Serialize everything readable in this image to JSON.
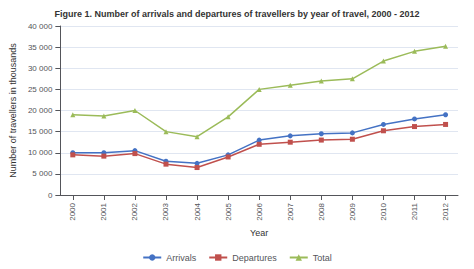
{
  "chart_data": {
    "type": "line",
    "title": "Figure 1. Number of arrivals and departures of travellers by year of travel, 2000 - 2012",
    "xlabel": "Year",
    "ylabel": "Number of travellers in thousands",
    "x": [
      2000,
      2001,
      2002,
      2003,
      2004,
      2005,
      2006,
      2007,
      2008,
      2009,
      2010,
      2011,
      2012
    ],
    "series": [
      {
        "name": "Arrivals",
        "color": "#4472C4",
        "marker": "circle",
        "values": [
          10000,
          10000,
          10500,
          8000,
          7500,
          9500,
          13000,
          14000,
          14500,
          14700,
          16700,
          18000,
          19000
        ]
      },
      {
        "name": "Departures",
        "color": "#C0504D",
        "marker": "square",
        "values": [
          9500,
          9200,
          9800,
          7300,
          6500,
          9000,
          12000,
          12500,
          13000,
          13200,
          15200,
          16200,
          16700
        ]
      },
      {
        "name": "Total",
        "color": "#9BBB59",
        "marker": "triangle",
        "values": [
          19000,
          18700,
          20000,
          15000,
          13800,
          18500,
          25000,
          26000,
          27000,
          27500,
          31700,
          34000,
          35200
        ]
      }
    ],
    "xlim": [
      1999.6,
      2012.4
    ],
    "xticks": [
      2000,
      2001,
      2002,
      2003,
      2004,
      2005,
      2006,
      2007,
      2008,
      2009,
      2010,
      2011,
      2012
    ],
    "ylim": [
      0,
      40000
    ],
    "yticks": [
      0,
      {
        "value": 5000,
        "label": "5 000"
      },
      {
        "value": 10000,
        "label": "10 000"
      },
      {
        "value": 15000,
        "label": "15 000"
      },
      {
        "value": 20000,
        "label": "20 000"
      },
      {
        "value": 25000,
        "label": "25 000"
      },
      {
        "value": 30000,
        "label": "30 000"
      },
      {
        "value": 35000,
        "label": "35 000"
      },
      {
        "value": 40000,
        "label": "40 000"
      }
    ],
    "grid": true,
    "legend": "bottom"
  }
}
